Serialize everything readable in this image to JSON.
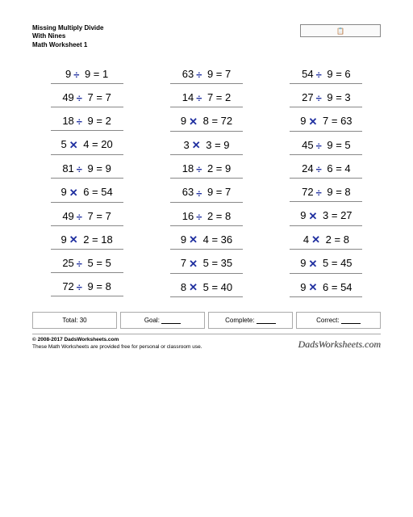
{
  "title": {
    "line1": "Missing Multiply Divide",
    "line2": "With Nines",
    "line3": "Math Worksheet 1"
  },
  "name_box_icon": "📋",
  "operators": {
    "divide": "➗",
    "multiply": "✖"
  },
  "columns": [
    [
      {
        "a": "9",
        "op": "divide",
        "b": "9",
        "r": "1"
      },
      {
        "a": "49",
        "op": "divide",
        "b": "7",
        "r": "7"
      },
      {
        "a": "18",
        "op": "divide",
        "b": "9",
        "r": "2"
      },
      {
        "a": "5",
        "op": "multiply",
        "b": "4",
        "r": "20"
      },
      {
        "a": "81",
        "op": "divide",
        "b": "9",
        "r": "9"
      },
      {
        "a": "9",
        "op": "multiply",
        "b": "6",
        "r": "54"
      },
      {
        "a": "49",
        "op": "divide",
        "b": "7",
        "r": "7"
      },
      {
        "a": "9",
        "op": "multiply",
        "b": "2",
        "r": "18"
      },
      {
        "a": "25",
        "op": "divide",
        "b": "5",
        "r": "5"
      },
      {
        "a": "72",
        "op": "divide",
        "b": "9",
        "r": "8"
      }
    ],
    [
      {
        "a": "63",
        "op": "divide",
        "b": "9",
        "r": "7"
      },
      {
        "a": "14",
        "op": "divide",
        "b": "7",
        "r": "2"
      },
      {
        "a": "9",
        "op": "multiply",
        "b": "8",
        "r": "72"
      },
      {
        "a": "3",
        "op": "multiply",
        "b": "3",
        "r": "9"
      },
      {
        "a": "18",
        "op": "divide",
        "b": "2",
        "r": "9"
      },
      {
        "a": "63",
        "op": "divide",
        "b": "9",
        "r": "7"
      },
      {
        "a": "16",
        "op": "divide",
        "b": "2",
        "r": "8"
      },
      {
        "a": "9",
        "op": "multiply",
        "b": "4",
        "r": "36"
      },
      {
        "a": "7",
        "op": "multiply",
        "b": "5",
        "r": "35"
      },
      {
        "a": "8",
        "op": "multiply",
        "b": "5",
        "r": "40"
      }
    ],
    [
      {
        "a": "54",
        "op": "divide",
        "b": "9",
        "r": "6"
      },
      {
        "a": "27",
        "op": "divide",
        "b": "9",
        "r": "3"
      },
      {
        "a": "9",
        "op": "multiply",
        "b": "7",
        "r": "63"
      },
      {
        "a": "45",
        "op": "divide",
        "b": "9",
        "r": "5"
      },
      {
        "a": "24",
        "op": "divide",
        "b": "6",
        "r": "4"
      },
      {
        "a": "72",
        "op": "divide",
        "b": "9",
        "r": "8"
      },
      {
        "a": "9",
        "op": "multiply",
        "b": "3",
        "r": "27"
      },
      {
        "a": "4",
        "op": "multiply",
        "b": "2",
        "r": "8"
      },
      {
        "a": "9",
        "op": "multiply",
        "b": "5",
        "r": "45"
      },
      {
        "a": "9",
        "op": "multiply",
        "b": "6",
        "r": "54"
      }
    ]
  ],
  "summary": {
    "total_label": "Total:",
    "total_value": "30",
    "goal_label": "Goal:",
    "complete_label": "Complete:",
    "correct_label": "Correct:"
  },
  "footer": {
    "copyright": "© 2008-2017 DadsWorksheets.com",
    "note": "These Math Worksheets are provided free for personal or classroom use.",
    "logo": "DadsWorksheets.com"
  },
  "style": {
    "op_color": "#2030a0",
    "text_color": "#000000",
    "border_color": "#888888",
    "page_bg": "#ffffff",
    "problem_fontsize": 13,
    "title_fontsize": 8
  }
}
